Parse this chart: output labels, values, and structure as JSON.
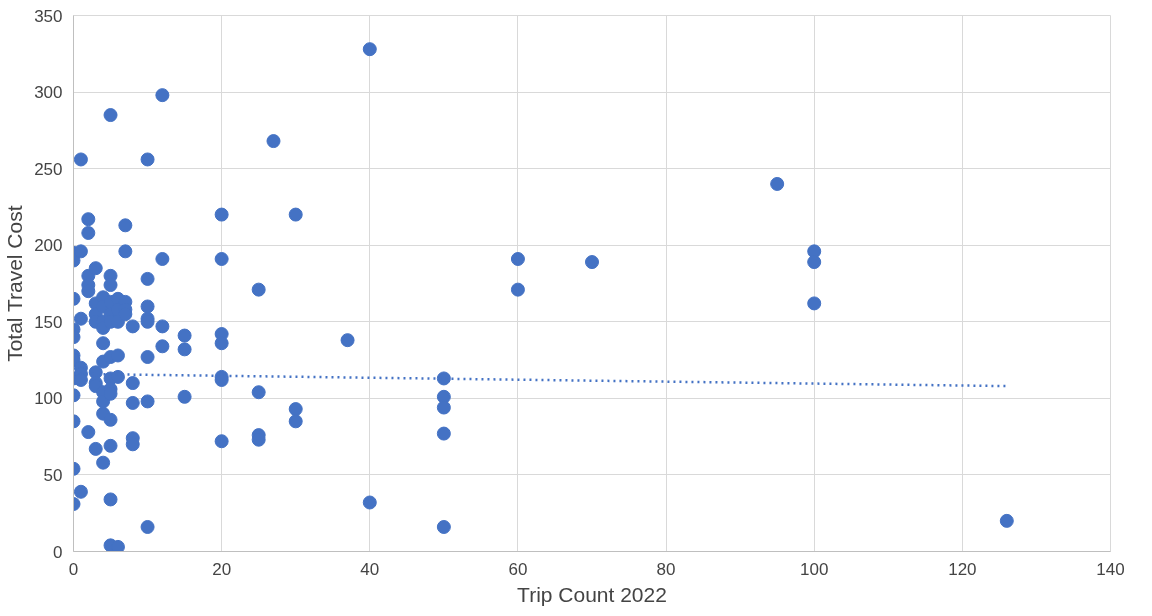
{
  "chart_data": {
    "type": "scatter",
    "xlabel": "Trip Count 2022",
    "ylabel": "Total Travel Cost",
    "xlim": [
      0,
      140
    ],
    "xticks": [
      0,
      20,
      40,
      60,
      80,
      100,
      120,
      140
    ],
    "ylim": [
      0,
      350
    ],
    "yticks": [
      0,
      50,
      100,
      150,
      200,
      250,
      300,
      350
    ],
    "grid": true,
    "series": [
      {
        "marker": "circle",
        "color": "#4472c4",
        "x": [
          0,
          0,
          0,
          0,
          0,
          0,
          0,
          0,
          0,
          0,
          0,
          0,
          1,
          1,
          1,
          1,
          1,
          1,
          1,
          2,
          2,
          2,
          2,
          2,
          2,
          3,
          3,
          3,
          3,
          3,
          3,
          3,
          3,
          4,
          4,
          4,
          4,
          4,
          4,
          4,
          4,
          4,
          4,
          5,
          5,
          5,
          5,
          5,
          5,
          5,
          5,
          5,
          5,
          5,
          5,
          5,
          5,
          6,
          6,
          6,
          6,
          6,
          6,
          7,
          7,
          7,
          7,
          7,
          8,
          8,
          8,
          8,
          8,
          10,
          10,
          10,
          10,
          10,
          10,
          10,
          10,
          12,
          12,
          12,
          12,
          15,
          15,
          15,
          20,
          20,
          20,
          20,
          20,
          20,
          20,
          25,
          25,
          25,
          25,
          27,
          30,
          30,
          30,
          37,
          40,
          40,
          50,
          50,
          50,
          50,
          50,
          60,
          60,
          70,
          95,
          100,
          100,
          100,
          126
        ],
        "values": [
          195,
          190,
          165,
          145,
          140,
          128,
          125,
          113,
          102,
          85,
          54,
          31,
          256,
          196,
          152,
          120,
          116,
          112,
          39,
          217,
          208,
          180,
          174,
          170,
          78,
          185,
          162,
          155,
          150,
          117,
          110,
          108,
          67,
          166,
          160,
          150,
          146,
          136,
          124,
          104,
          98,
          90,
          58,
          285,
          180,
          174,
          163,
          155,
          150,
          127,
          113,
          106,
          103,
          86,
          69,
          34,
          4,
          165,
          158,
          150,
          128,
          114,
          3,
          213,
          196,
          163,
          158,
          155,
          147,
          110,
          97,
          74,
          70,
          256,
          178,
          160,
          152,
          150,
          127,
          98,
          16,
          298,
          191,
          147,
          134,
          141,
          132,
          101,
          220,
          191,
          142,
          136,
          114,
          112,
          72,
          171,
          104,
          76,
          73,
          268,
          220,
          93,
          85,
          138,
          328,
          32,
          113,
          101,
          94,
          77,
          16,
          191,
          171,
          189,
          240,
          196,
          189,
          162,
          20
        ]
      },
      {
        "type": "line",
        "color": "#4472c4",
        "line_style": "dotted",
        "x": [
          0,
          126
        ],
        "values": [
          116,
          108
        ]
      }
    ]
  }
}
